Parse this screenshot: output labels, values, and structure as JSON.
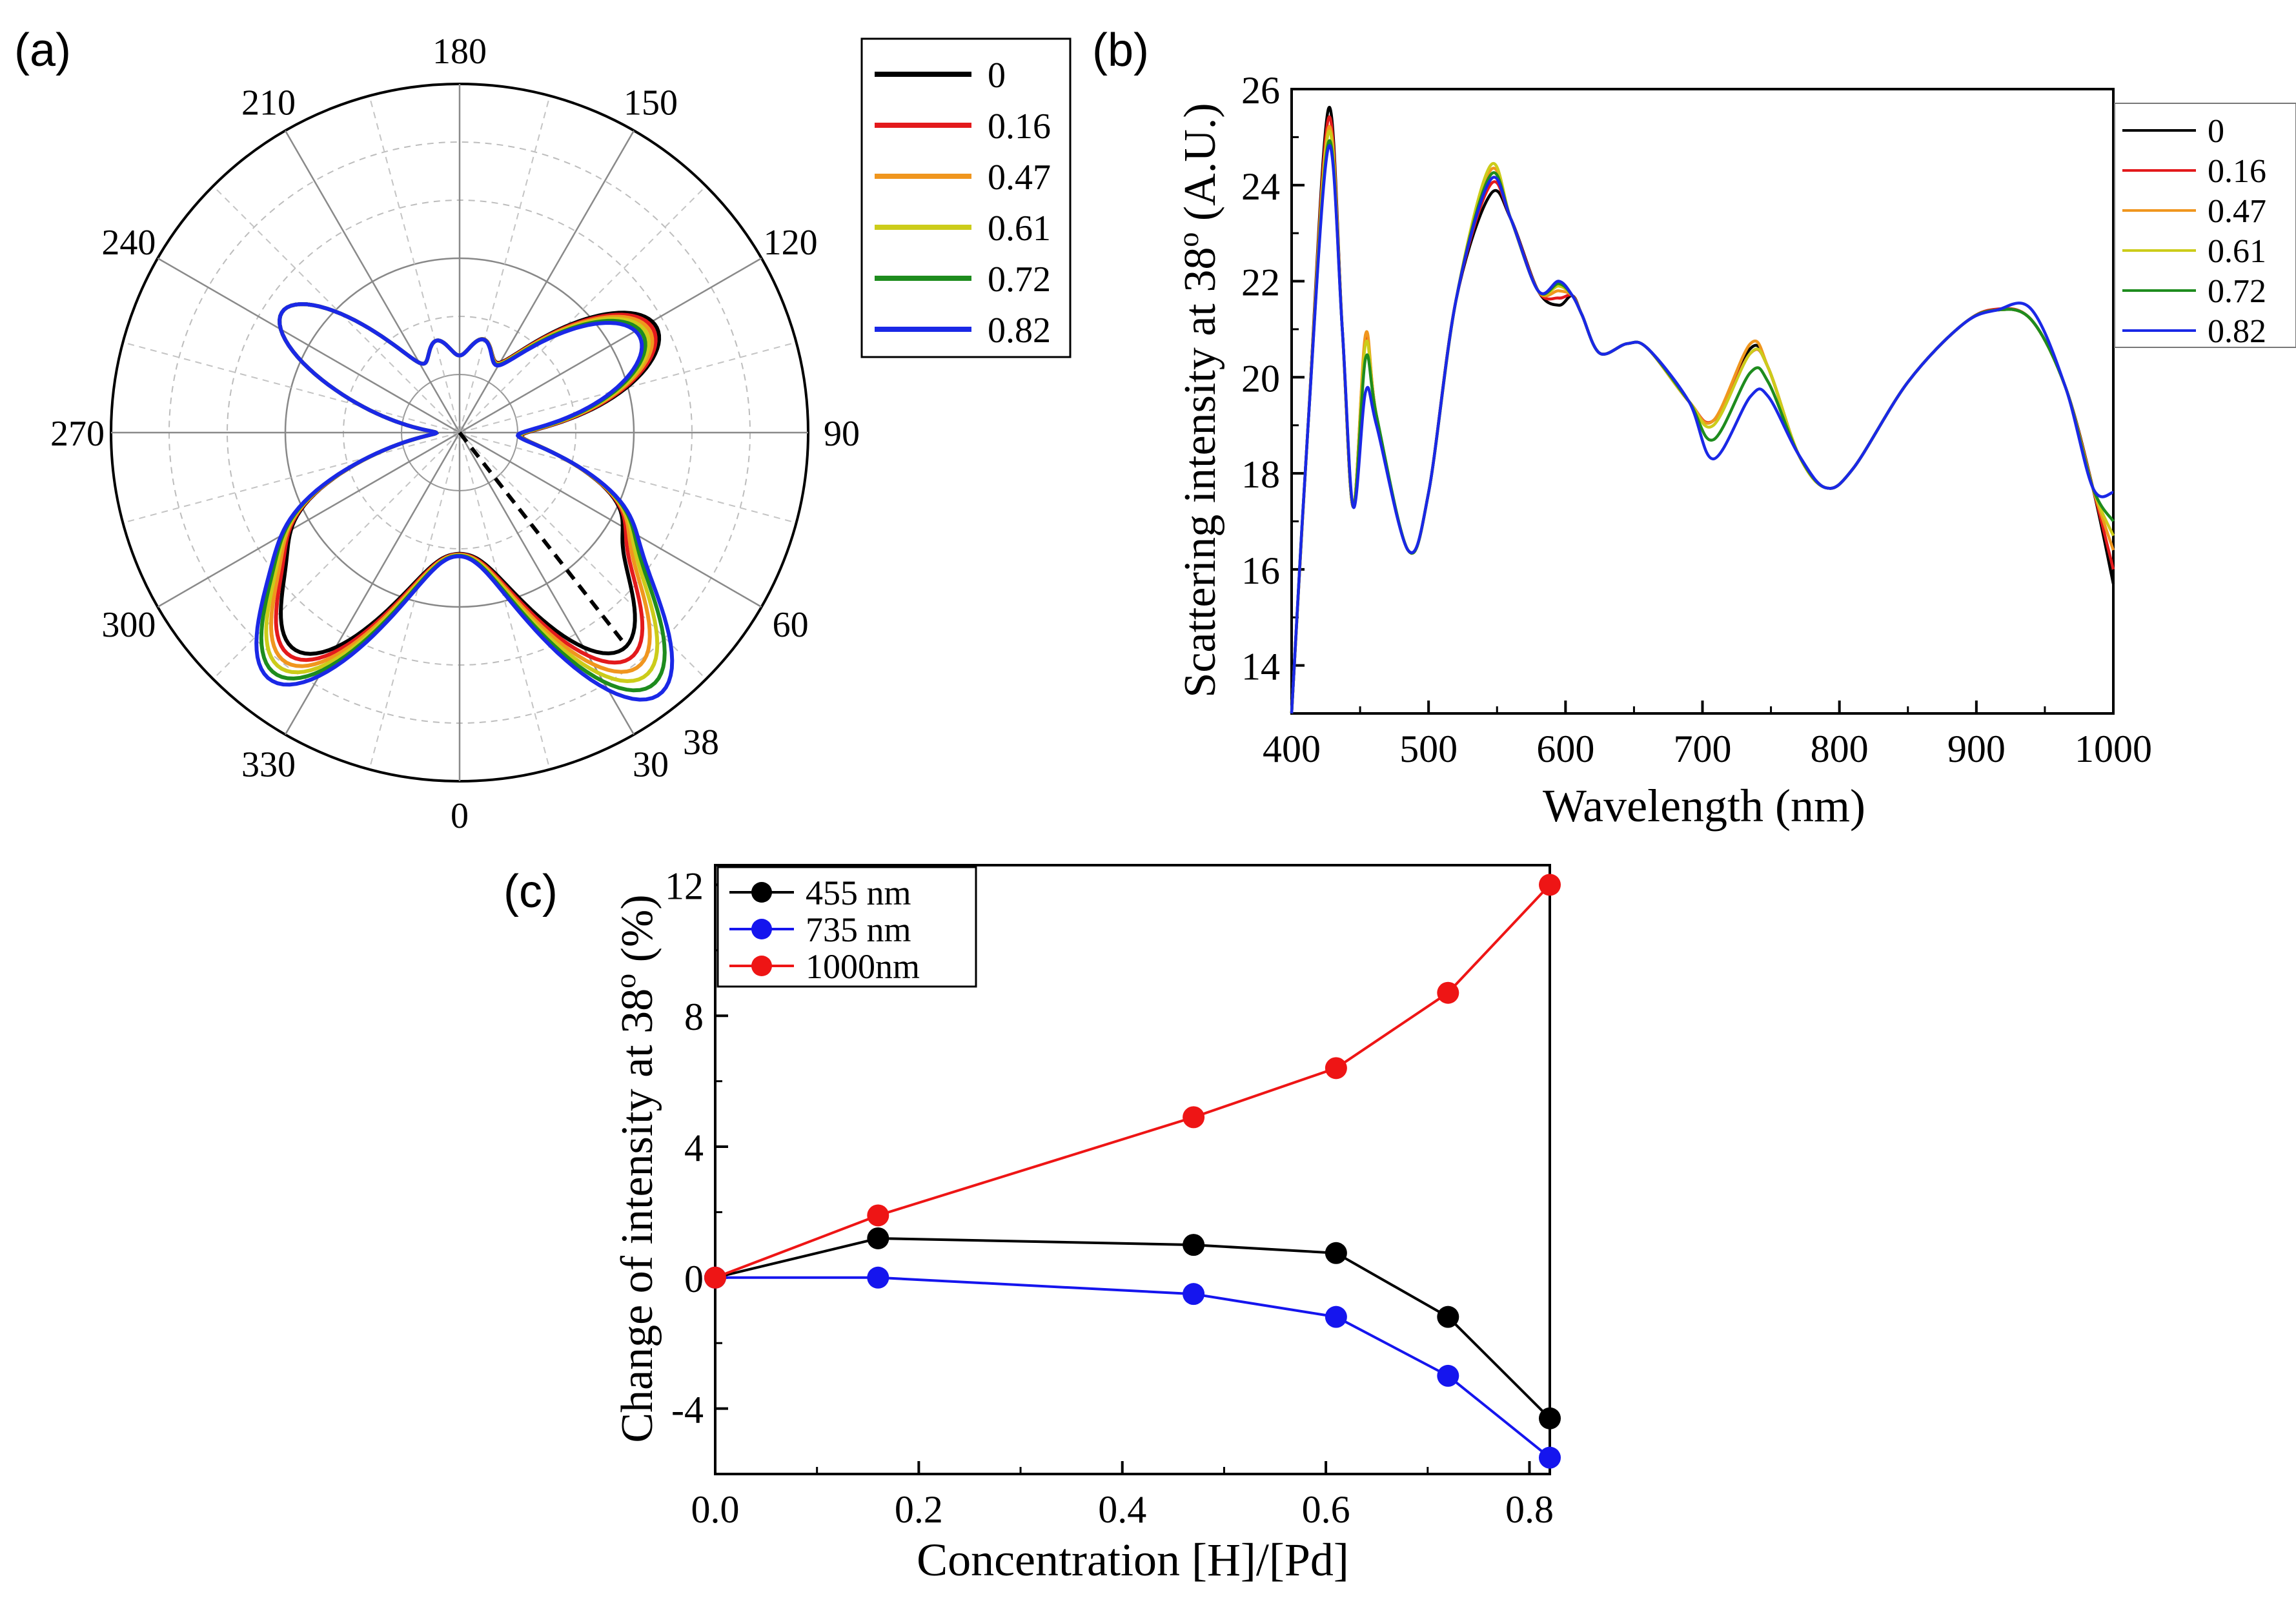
{
  "chart_data": [
    {
      "panel_label": "(a)",
      "type": "polar-line",
      "angle_ticks": [
        "0",
        "30",
        "60",
        "90",
        "120",
        "150",
        "180",
        "210",
        "240",
        "270",
        "300",
        "330"
      ],
      "angle_tick_values": [
        0,
        30,
        60,
        90,
        120,
        150,
        180,
        210,
        240,
        270,
        300,
        330
      ],
      "direction": "counter-clockwise from bottom",
      "annotation": {
        "text": "38",
        "angle": 38,
        "style": "dashed line"
      },
      "legend_entries": [
        "0",
        "0.16",
        "0.47",
        "0.61",
        "0.72",
        "0.82"
      ],
      "legend_placement": "right",
      "series_colors": [
        "#000000",
        "#e31a1c",
        "#f0961e",
        "#cccc1a",
        "#1e8c1e",
        "#1a28e6"
      ]
    },
    {
      "panel_label": "(b)",
      "type": "line",
      "xlabel": "Wavelength (nm)",
      "ylabel": "Scattering intensity at 38",
      "ylabel_superscript": "o",
      "ylabel_unit": " (A.U.)",
      "xlim": [
        400,
        1000
      ],
      "ylim": [
        13,
        26
      ],
      "xticks": [
        400,
        500,
        600,
        700,
        800,
        900,
        1000
      ],
      "yticks": [
        14,
        16,
        18,
        20,
        22,
        24,
        26
      ],
      "legend_entries": [
        "0",
        "0.16",
        "0.47",
        "0.61",
        "0.72",
        "0.82"
      ],
      "legend_placement": "right",
      "series_colors": [
        "#000000",
        "#e31a1c",
        "#f0961e",
        "#cccc1a",
        "#1e8c1e",
        "#1a28e6"
      ]
    },
    {
      "panel_label": "(c)",
      "type": "line",
      "xlabel": "Concentration [H]/[Pd]",
      "ylabel": "Change of intensity at 38",
      "ylabel_superscript": "o",
      "ylabel_unit": " (%)",
      "xlim": [
        0.0,
        0.82
      ],
      "ylim": [
        -6,
        12.6
      ],
      "xticks": [
        "0.0",
        "0.2",
        "0.4",
        "0.6",
        "0.8"
      ],
      "yticks": [
        "-4",
        "0",
        "4",
        "8",
        "12"
      ],
      "x": [
        0,
        0.16,
        0.47,
        0.61,
        0.72,
        0.82
      ],
      "series": [
        {
          "name": "455 nm",
          "color": "#000000",
          "values": [
            0,
            1.2,
            1.0,
            0.75,
            -1.2,
            -4.3
          ]
        },
        {
          "name": "735 nm",
          "color": "#1515ee",
          "values": [
            0,
            0.0,
            -0.5,
            -1.2,
            -3.0,
            -5.5
          ]
        },
        {
          "name": "1000nm",
          "color": "#ee1515",
          "values": [
            0,
            1.9,
            4.9,
            6.4,
            8.7,
            12.0
          ]
        }
      ],
      "legend_placement": "top-left"
    }
  ]
}
